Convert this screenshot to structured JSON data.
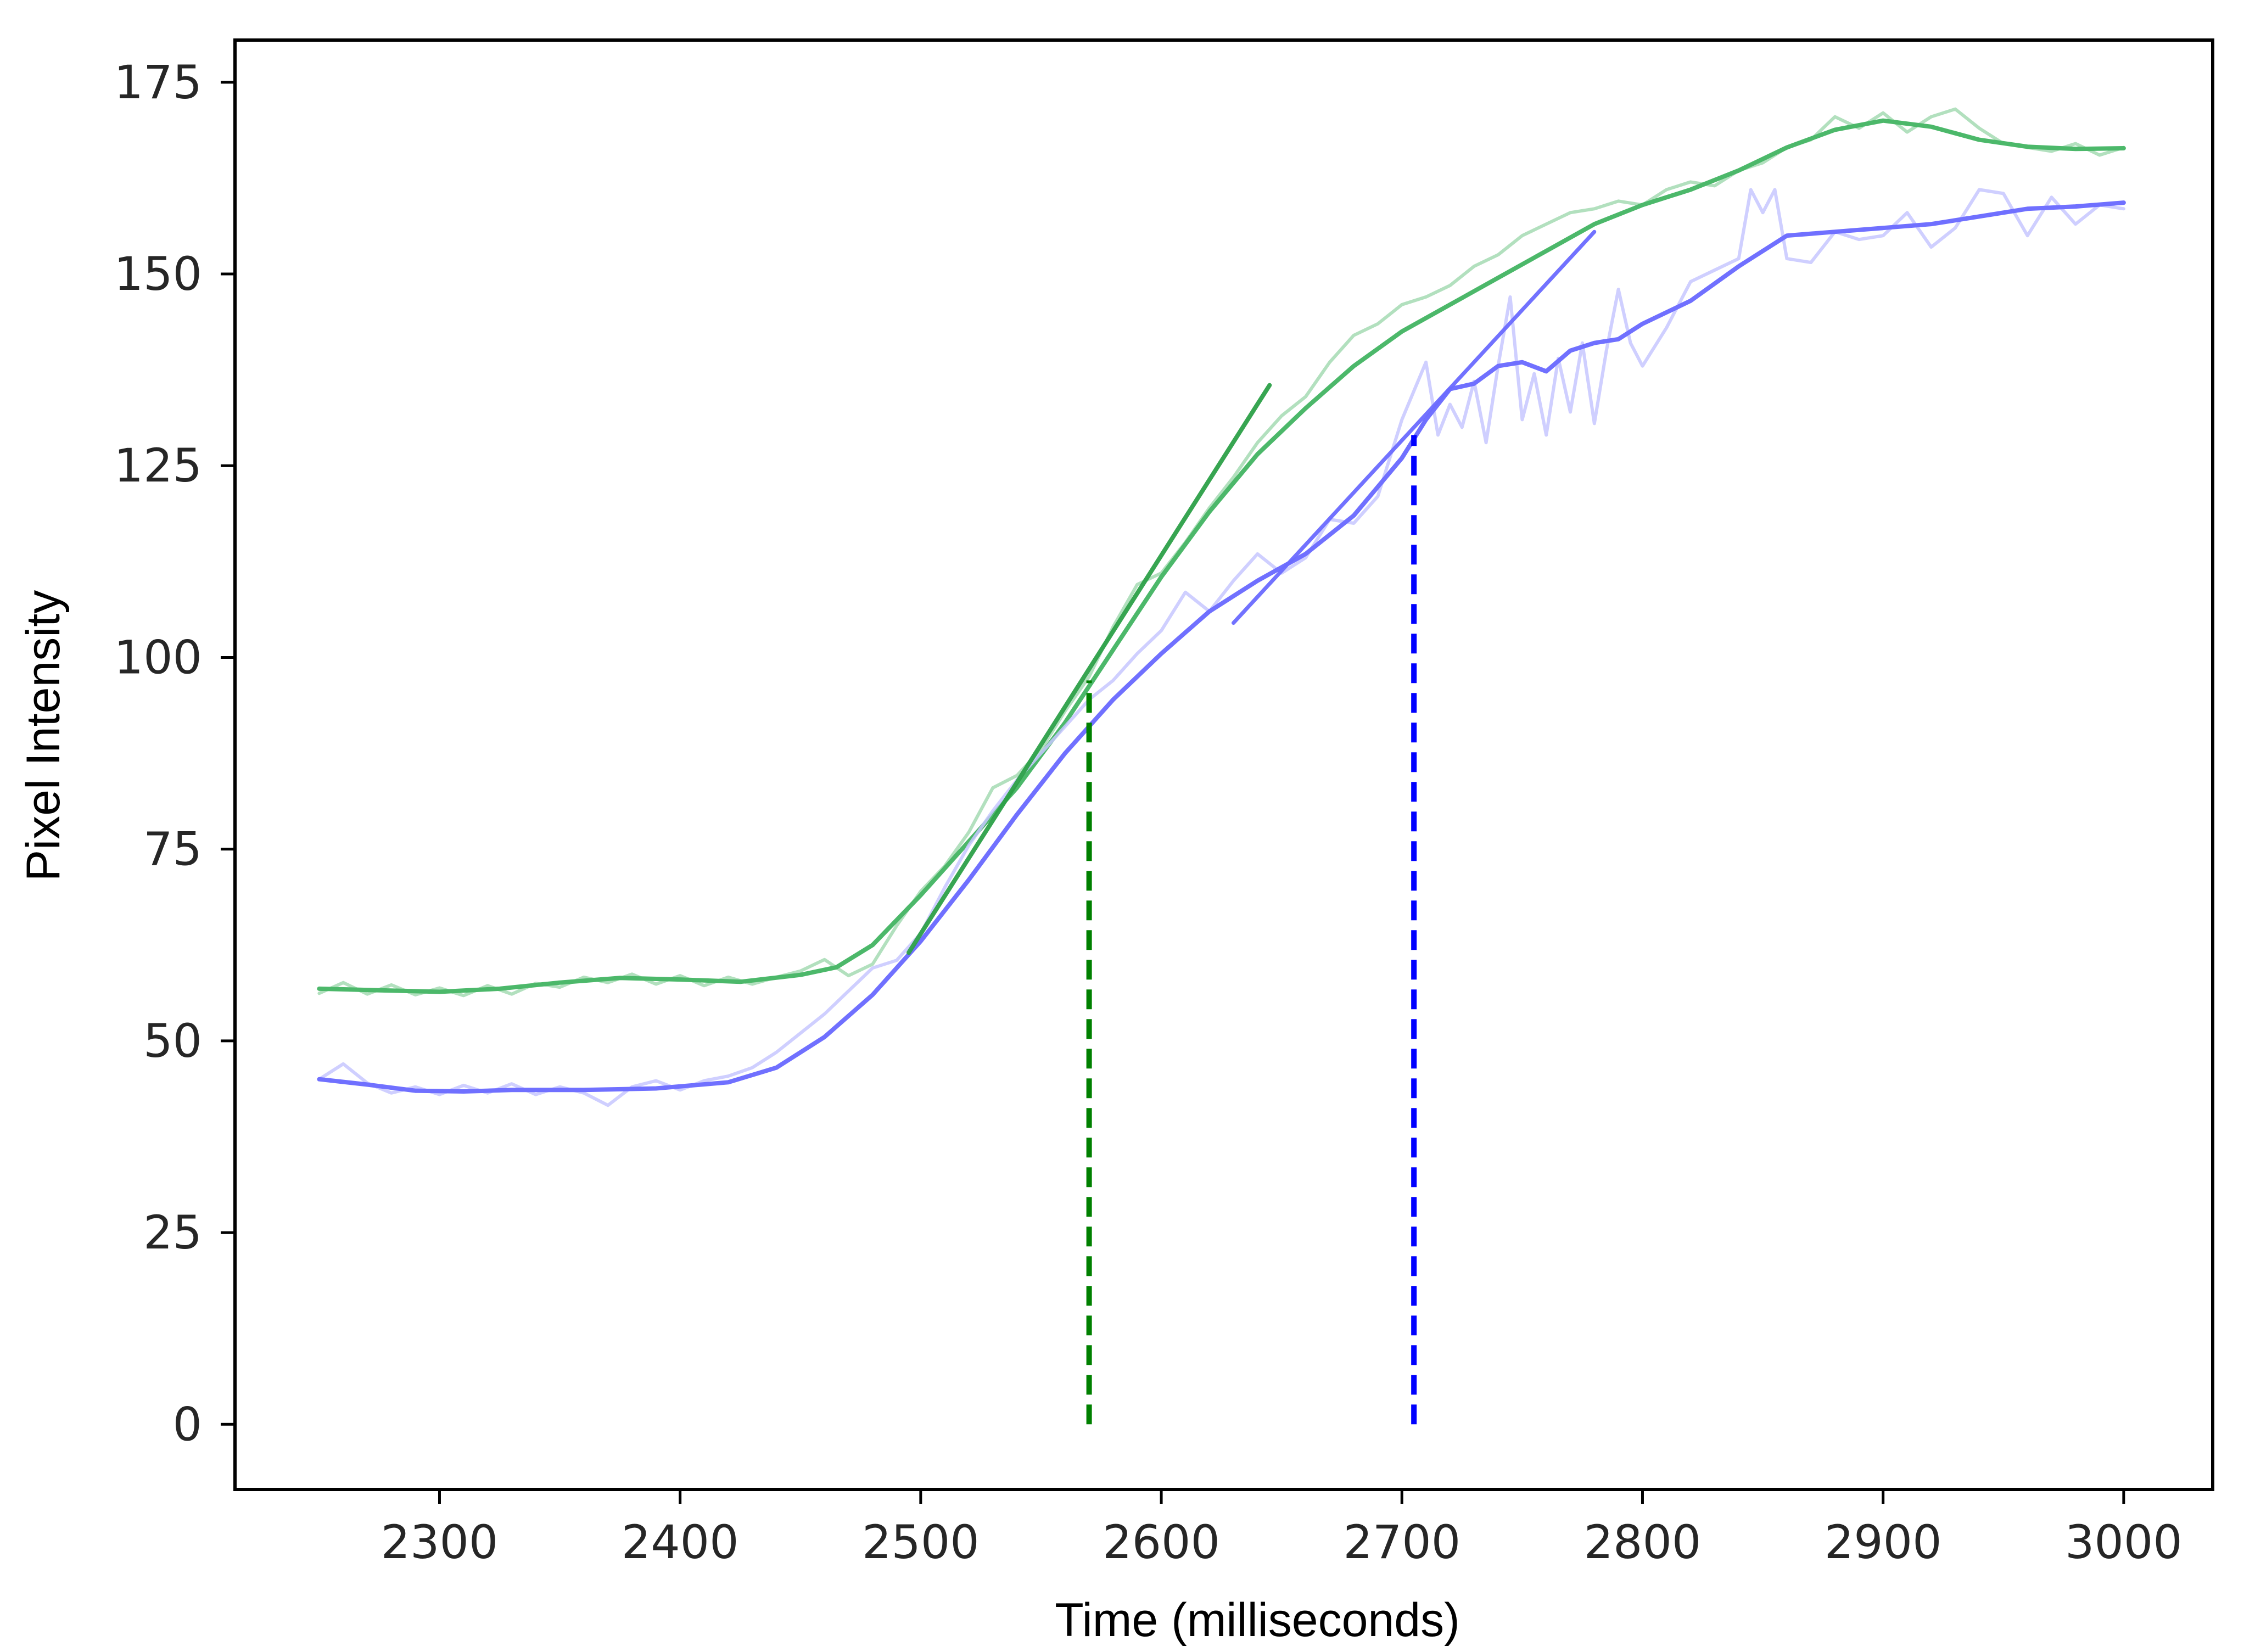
{
  "chart_data": {
    "type": "line",
    "title": "",
    "xlabel": "Time (milliseconds)",
    "ylabel": "Pixel Intensity",
    "xlim": [
      2215,
      3037
    ],
    "ylim": [
      -8.5,
      180.5
    ],
    "xticks": [
      2300,
      2400,
      2500,
      2600,
      2700,
      2800,
      2900,
      3000
    ],
    "yticks": [
      0,
      25,
      50,
      75,
      100,
      125,
      150,
      175
    ],
    "grid": false,
    "legend": "none",
    "colors": {
      "green_smooth": "#4cb86a",
      "green_raw": "#a5dbb3",
      "green_fit": "#2ca048",
      "green_marker": "#008000",
      "blue_smooth": "#7070ff",
      "blue_raw": "#c7c7ff",
      "blue_fit": "#6a6aff",
      "blue_marker": "#0000ff"
    },
    "series": [
      {
        "key": "green_raw",
        "points": [
          [
            2250,
            56.2
          ],
          [
            2260,
            57.6
          ],
          [
            2270,
            56.1
          ],
          [
            2280,
            57.3
          ],
          [
            2290,
            56.0
          ],
          [
            2300,
            56.9
          ],
          [
            2310,
            55.9
          ],
          [
            2320,
            57.2
          ],
          [
            2330,
            56.1
          ],
          [
            2340,
            57.5
          ],
          [
            2350,
            57.0
          ],
          [
            2360,
            58.3
          ],
          [
            2370,
            57.6
          ],
          [
            2380,
            58.7
          ],
          [
            2390,
            57.4
          ],
          [
            2400,
            58.5
          ],
          [
            2410,
            57.2
          ],
          [
            2420,
            58.3
          ],
          [
            2430,
            57.4
          ],
          [
            2440,
            58.3
          ],
          [
            2450,
            59.1
          ],
          [
            2460,
            60.6
          ],
          [
            2470,
            58.5
          ],
          [
            2480,
            60.0
          ],
          [
            2490,
            65.0
          ],
          [
            2500,
            69.5
          ],
          [
            2510,
            72.8
          ],
          [
            2520,
            77.2
          ],
          [
            2530,
            83.0
          ],
          [
            2540,
            84.6
          ],
          [
            2550,
            88.0
          ],
          [
            2560,
            93.0
          ],
          [
            2570,
            97.5
          ],
          [
            2580,
            104.0
          ],
          [
            2590,
            109.5
          ],
          [
            2600,
            111.0
          ],
          [
            2610,
            115.0
          ],
          [
            2620,
            119.5
          ],
          [
            2630,
            123.5
          ],
          [
            2640,
            128.0
          ],
          [
            2650,
            131.5
          ],
          [
            2660,
            134.0
          ],
          [
            2670,
            138.5
          ],
          [
            2680,
            142.0
          ],
          [
            2690,
            143.5
          ],
          [
            2700,
            146.0
          ],
          [
            2710,
            147.0
          ],
          [
            2720,
            148.5
          ],
          [
            2730,
            151.0
          ],
          [
            2740,
            152.5
          ],
          [
            2750,
            155.0
          ],
          [
            2760,
            156.5
          ],
          [
            2770,
            158.0
          ],
          [
            2780,
            158.5
          ],
          [
            2790,
            159.5
          ],
          [
            2800,
            159.0
          ],
          [
            2810,
            161.0
          ],
          [
            2820,
            162.0
          ],
          [
            2830,
            161.5
          ],
          [
            2840,
            163.5
          ],
          [
            2850,
            164.5
          ],
          [
            2860,
            166.5
          ],
          [
            2870,
            167.5
          ],
          [
            2880,
            170.5
          ],
          [
            2890,
            169.0
          ],
          [
            2900,
            171.0
          ],
          [
            2910,
            168.5
          ],
          [
            2920,
            170.5
          ],
          [
            2930,
            171.5
          ],
          [
            2940,
            169.0
          ],
          [
            2950,
            167.0
          ],
          [
            2960,
            166.5
          ],
          [
            2970,
            166.0
          ],
          [
            2980,
            167.0
          ],
          [
            2990,
            165.5
          ],
          [
            3000,
            166.5
          ]
        ]
      },
      {
        "key": "green_smooth",
        "points": [
          [
            2250,
            56.8
          ],
          [
            2275,
            56.6
          ],
          [
            2300,
            56.4
          ],
          [
            2325,
            56.8
          ],
          [
            2350,
            57.6
          ],
          [
            2375,
            58.2
          ],
          [
            2400,
            58.0
          ],
          [
            2425,
            57.7
          ],
          [
            2450,
            58.6
          ],
          [
            2465,
            59.6
          ],
          [
            2480,
            62.5
          ],
          [
            2500,
            69.0
          ],
          [
            2520,
            76.0
          ],
          [
            2540,
            83.0
          ],
          [
            2560,
            91.5
          ],
          [
            2580,
            101.0
          ],
          [
            2600,
            110.5
          ],
          [
            2620,
            119.0
          ],
          [
            2640,
            126.5
          ],
          [
            2660,
            132.5
          ],
          [
            2680,
            138.0
          ],
          [
            2700,
            142.5
          ],
          [
            2720,
            146.0
          ],
          [
            2740,
            149.5
          ],
          [
            2760,
            153.0
          ],
          [
            2780,
            156.5
          ],
          [
            2800,
            159.0
          ],
          [
            2820,
            161.0
          ],
          [
            2840,
            163.5
          ],
          [
            2860,
            166.5
          ],
          [
            2880,
            168.8
          ],
          [
            2900,
            170.0
          ],
          [
            2920,
            169.2
          ],
          [
            2940,
            167.5
          ],
          [
            2960,
            166.6
          ],
          [
            2980,
            166.3
          ],
          [
            3000,
            166.4
          ]
        ]
      },
      {
        "key": "blue_raw",
        "points": [
          [
            2250,
            45.0
          ],
          [
            2260,
            47.0
          ],
          [
            2270,
            44.5
          ],
          [
            2280,
            43.2
          ],
          [
            2290,
            44.0
          ],
          [
            2300,
            43.0
          ],
          [
            2310,
            44.2
          ],
          [
            2320,
            43.2
          ],
          [
            2330,
            44.4
          ],
          [
            2340,
            43.0
          ],
          [
            2350,
            44.0
          ],
          [
            2360,
            43.2
          ],
          [
            2370,
            41.6
          ],
          [
            2380,
            44.0
          ],
          [
            2390,
            44.8
          ],
          [
            2400,
            43.6
          ],
          [
            2410,
            44.8
          ],
          [
            2420,
            45.4
          ],
          [
            2430,
            46.5
          ],
          [
            2440,
            48.5
          ],
          [
            2450,
            51.0
          ],
          [
            2460,
            53.5
          ],
          [
            2470,
            56.5
          ],
          [
            2480,
            59.5
          ],
          [
            2490,
            60.5
          ],
          [
            2500,
            64.0
          ],
          [
            2510,
            70.0
          ],
          [
            2520,
            75.5
          ],
          [
            2530,
            80.0
          ],
          [
            2540,
            84.0
          ],
          [
            2550,
            87.5
          ],
          [
            2560,
            91.0
          ],
          [
            2570,
            94.5
          ],
          [
            2580,
            97.0
          ],
          [
            2590,
            100.5
          ],
          [
            2600,
            103.5
          ],
          [
            2610,
            108.5
          ],
          [
            2620,
            106.0
          ],
          [
            2630,
            110.0
          ],
          [
            2640,
            113.5
          ],
          [
            2650,
            111.0
          ],
          [
            2660,
            113.0
          ],
          [
            2670,
            118.0
          ],
          [
            2680,
            117.5
          ],
          [
            2690,
            121.0
          ],
          [
            2700,
            131.0
          ],
          [
            2710,
            138.5
          ],
          [
            2715,
            129.0
          ],
          [
            2720,
            133.0
          ],
          [
            2725,
            130.0
          ],
          [
            2730,
            136.0
          ],
          [
            2735,
            128.0
          ],
          [
            2740,
            138.0
          ],
          [
            2745,
            147.0
          ],
          [
            2750,
            131.0
          ],
          [
            2755,
            137.0
          ],
          [
            2760,
            129.0
          ],
          [
            2765,
            139.0
          ],
          [
            2770,
            132.0
          ],
          [
            2775,
            141.0
          ],
          [
            2780,
            130.5
          ],
          [
            2785,
            140.0
          ],
          [
            2790,
            148.0
          ],
          [
            2795,
            141.0
          ],
          [
            2800,
            138.0
          ],
          [
            2810,
            143.0
          ],
          [
            2820,
            149.0
          ],
          [
            2830,
            150.5
          ],
          [
            2840,
            152.0
          ],
          [
            2845,
            161.0
          ],
          [
            2850,
            158.0
          ],
          [
            2855,
            161.0
          ],
          [
            2860,
            152.0
          ],
          [
            2870,
            151.5
          ],
          [
            2880,
            155.5
          ],
          [
            2890,
            154.5
          ],
          [
            2900,
            155.0
          ],
          [
            2910,
            158.0
          ],
          [
            2920,
            153.5
          ],
          [
            2930,
            156.0
          ],
          [
            2940,
            161.0
          ],
          [
            2950,
            160.5
          ],
          [
            2960,
            155.0
          ],
          [
            2970,
            160.0
          ],
          [
            2980,
            156.5
          ],
          [
            2990,
            159.0
          ],
          [
            3000,
            158.5
          ]
        ]
      },
      {
        "key": "blue_smooth",
        "points": [
          [
            2250,
            45.0
          ],
          [
            2270,
            44.3
          ],
          [
            2290,
            43.5
          ],
          [
            2310,
            43.4
          ],
          [
            2330,
            43.6
          ],
          [
            2360,
            43.6
          ],
          [
            2390,
            43.8
          ],
          [
            2420,
            44.6
          ],
          [
            2440,
            46.5
          ],
          [
            2460,
            50.5
          ],
          [
            2480,
            56.0
          ],
          [
            2500,
            63.0
          ],
          [
            2520,
            71.0
          ],
          [
            2540,
            79.5
          ],
          [
            2560,
            87.5
          ],
          [
            2580,
            94.5
          ],
          [
            2600,
            100.5
          ],
          [
            2620,
            106.0
          ],
          [
            2640,
            110.0
          ],
          [
            2660,
            113.5
          ],
          [
            2680,
            118.5
          ],
          [
            2700,
            126.0
          ],
          [
            2710,
            131.0
          ],
          [
            2720,
            135.0
          ],
          [
            2730,
            135.7
          ],
          [
            2740,
            138.0
          ],
          [
            2750,
            138.5
          ],
          [
            2760,
            137.3
          ],
          [
            2770,
            140.0
          ],
          [
            2780,
            141.0
          ],
          [
            2790,
            141.5
          ],
          [
            2800,
            143.5
          ],
          [
            2820,
            146.5
          ],
          [
            2840,
            151.0
          ],
          [
            2860,
            155.0
          ],
          [
            2880,
            155.5
          ],
          [
            2900,
            156.0
          ],
          [
            2920,
            156.5
          ],
          [
            2940,
            157.5
          ],
          [
            2960,
            158.5
          ],
          [
            2980,
            158.8
          ],
          [
            3000,
            159.3
          ]
        ]
      },
      {
        "key": "green_fit",
        "points": [
          [
            2495,
            61.5
          ],
          [
            2645,
            135.5
          ]
        ]
      },
      {
        "key": "blue_fit",
        "points": [
          [
            2630,
            104.5
          ],
          [
            2780,
            155.5
          ]
        ]
      }
    ],
    "markers": [
      {
        "key": "green_marker",
        "x": 2570,
        "y_from": 0,
        "y_to": 97
      },
      {
        "key": "blue_marker",
        "x": 2705,
        "y_from": 0,
        "y_to": 129
      }
    ]
  }
}
